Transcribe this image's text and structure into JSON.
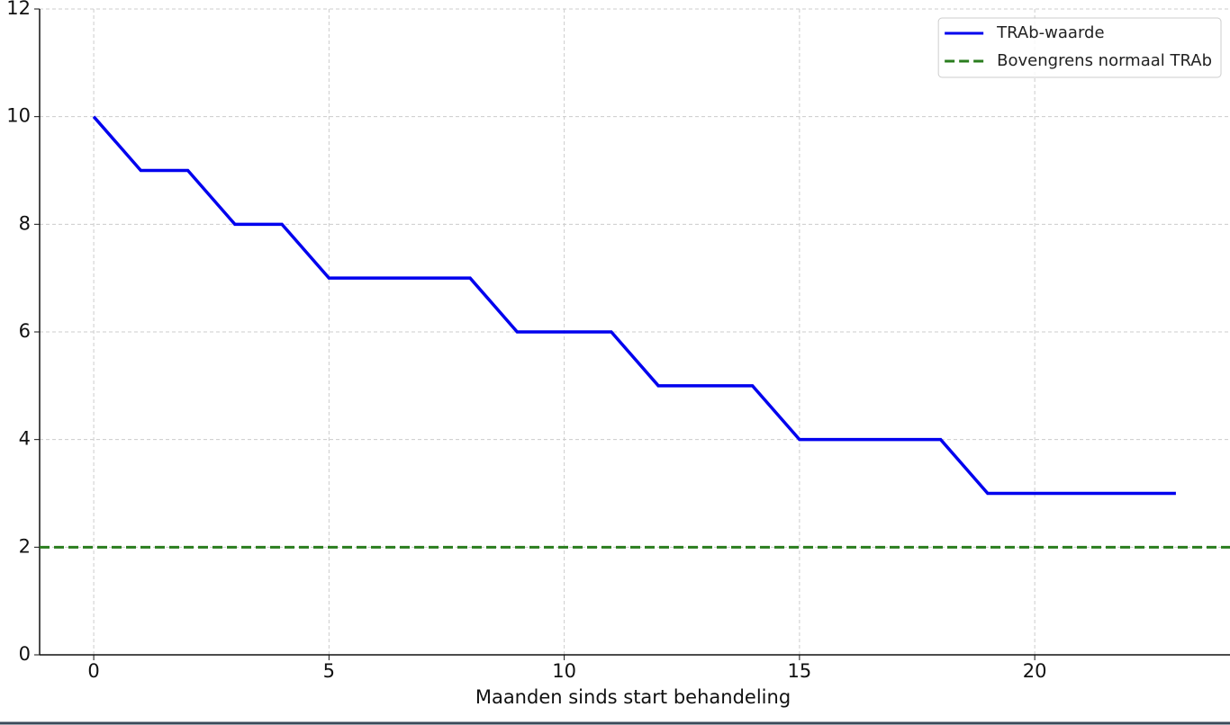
{
  "chart_data": {
    "type": "line",
    "x_label": "Maanden sinds start behandeling",
    "x": [
      0,
      1,
      2,
      3,
      4,
      5,
      6,
      7,
      8,
      9,
      10,
      11,
      12,
      13,
      14,
      15,
      16,
      17,
      18,
      19,
      20,
      21,
      22,
      23
    ],
    "series": [
      {
        "name": "TRAb-waarde",
        "color": "#0000ee",
        "values": [
          10,
          9,
          9,
          8,
          8,
          7,
          7,
          7,
          7,
          6,
          6,
          6,
          5,
          5,
          5,
          4,
          4,
          4,
          4,
          3,
          3,
          3,
          3,
          3
        ]
      }
    ],
    "hlines": [
      {
        "name": "Bovengrens normaal TRAb",
        "color": "#2a7d1e",
        "value": 2,
        "style": "dashed"
      }
    ],
    "xlim": [
      -1.15,
      24.15
    ],
    "ylim": [
      0,
      12
    ],
    "xticks": [
      0,
      5,
      10,
      15,
      20
    ],
    "yticks": [
      0,
      2,
      4,
      6,
      8,
      10,
      12
    ],
    "grid": true,
    "legend": "upper right"
  }
}
